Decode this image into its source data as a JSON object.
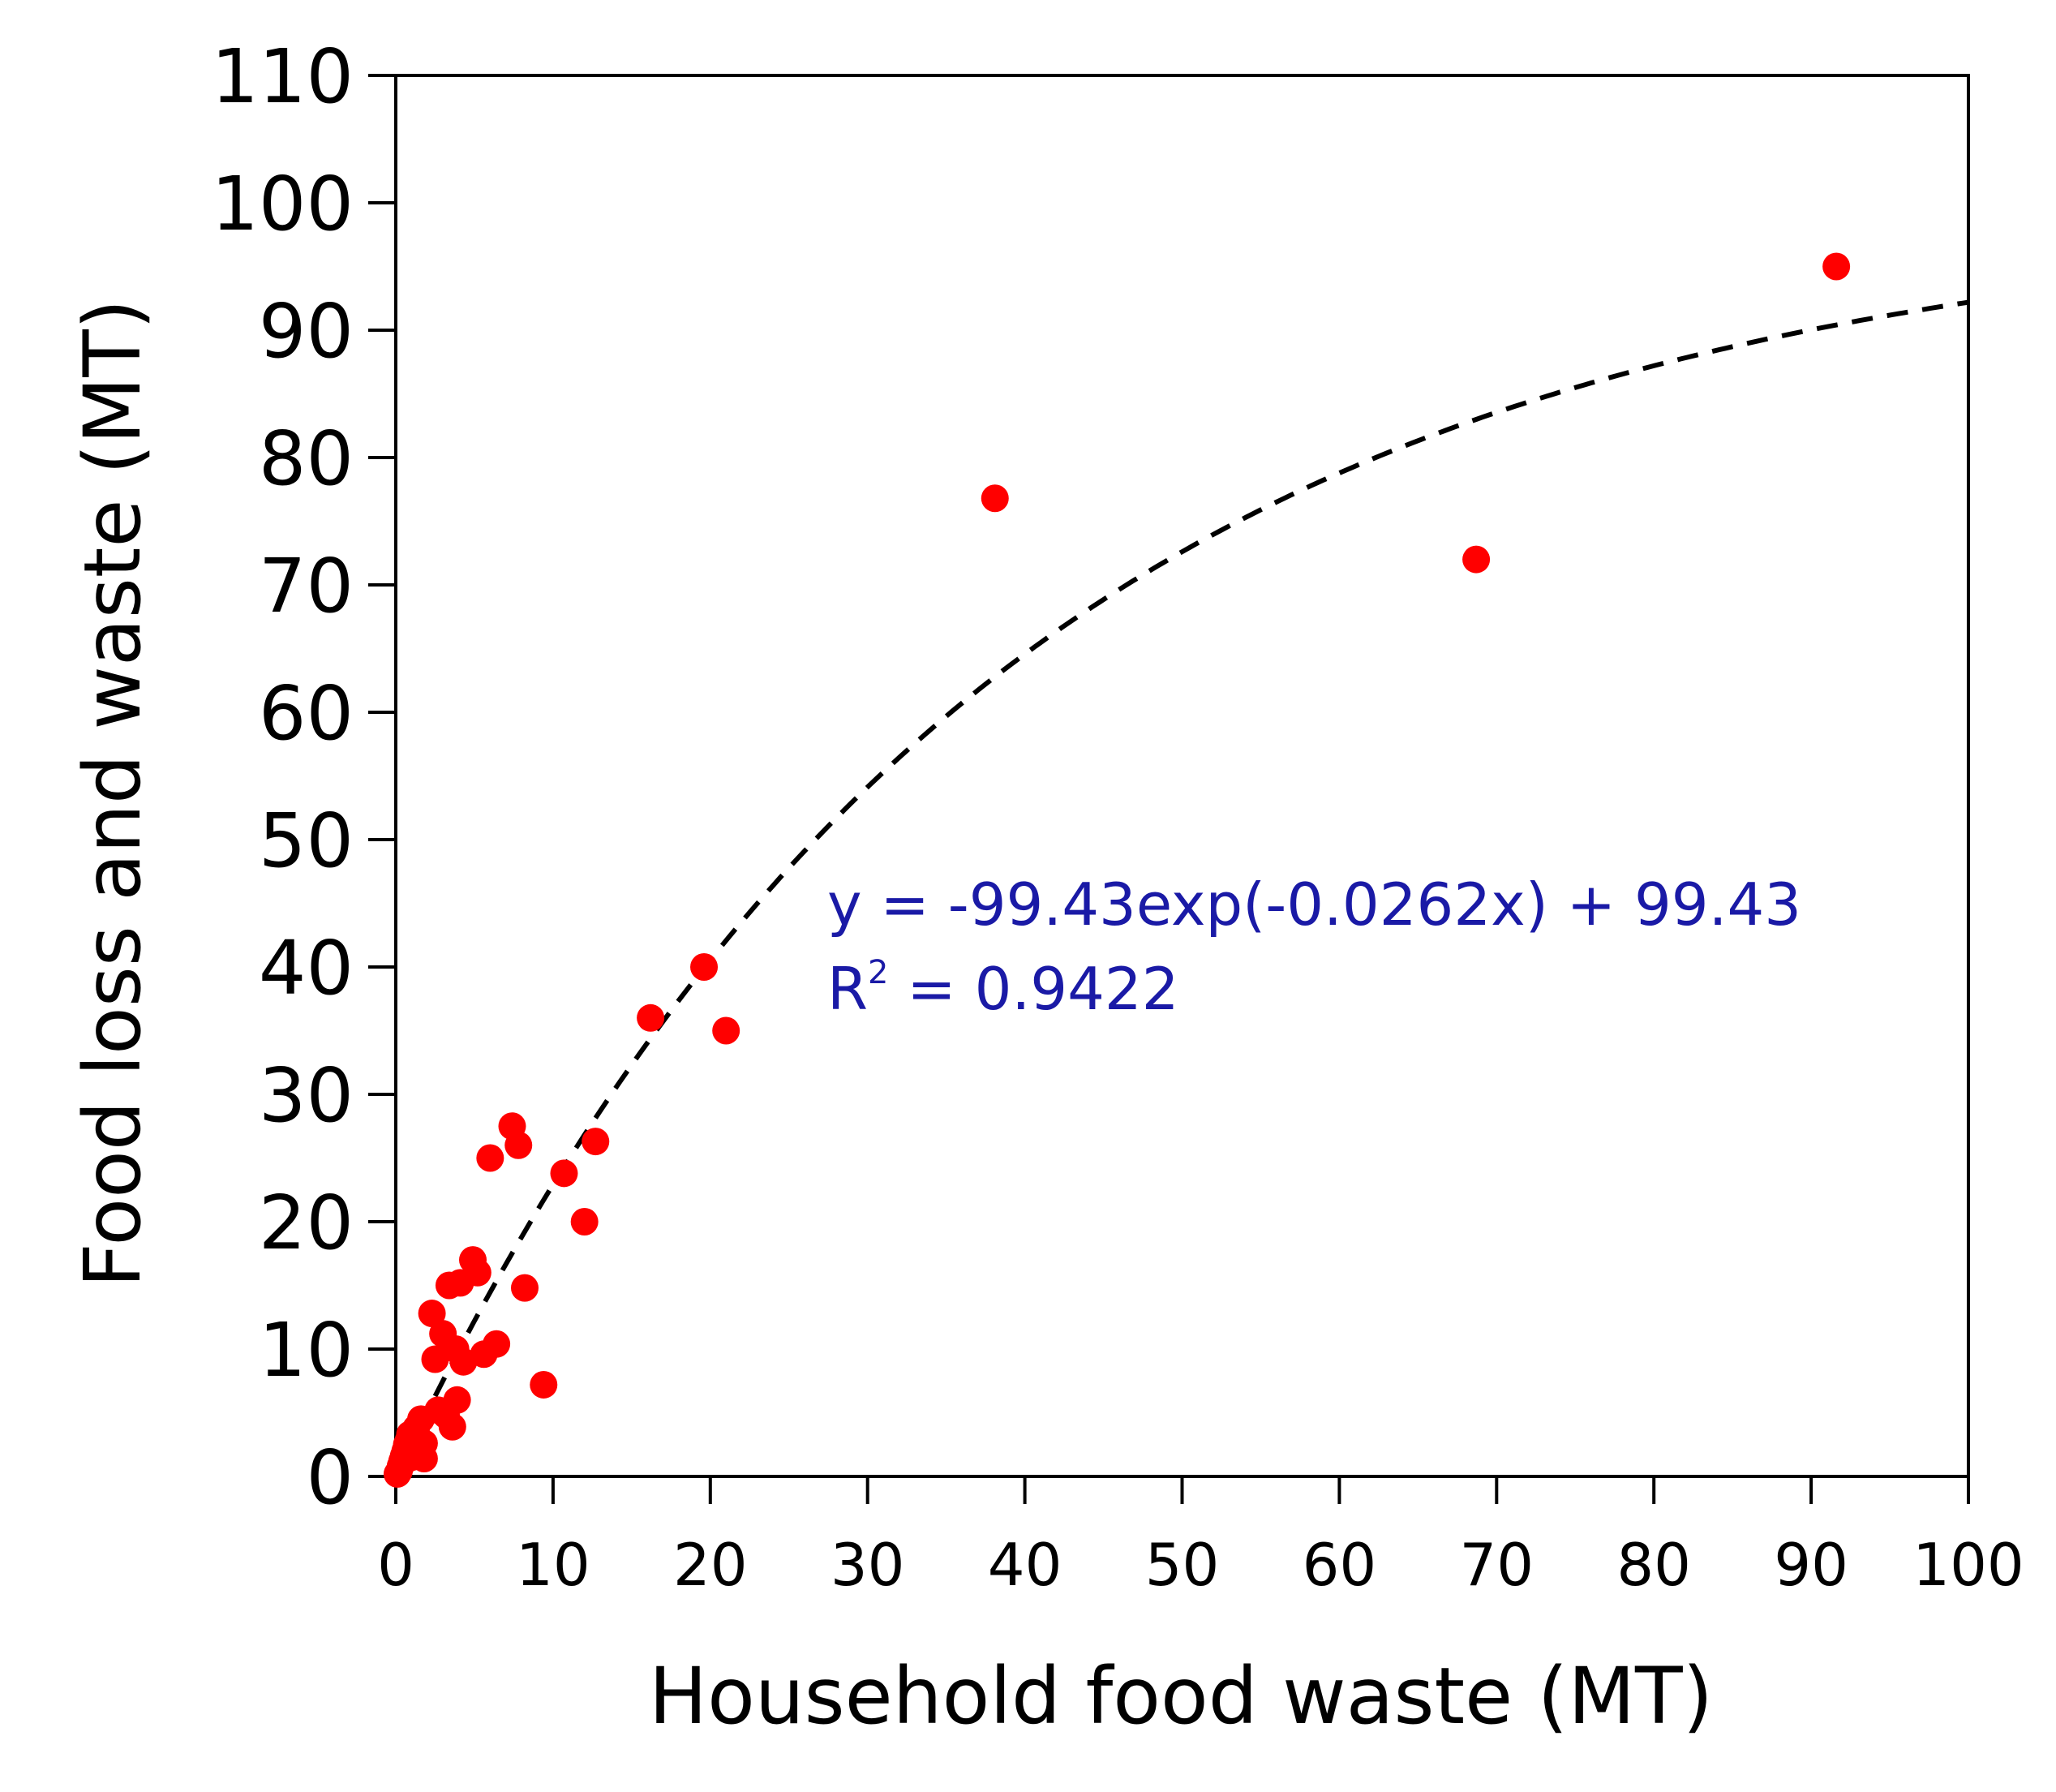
{
  "chart_data": {
    "type": "scatter",
    "title": "",
    "xlabel": "Household food waste (MT)",
    "ylabel": "Food loss and waste (MT)",
    "xlim": [
      0,
      100
    ],
    "ylim": [
      0,
      110
    ],
    "x_ticks": [
      0,
      10,
      20,
      30,
      40,
      50,
      60,
      70,
      80,
      90,
      100
    ],
    "y_ticks": [
      0,
      10,
      20,
      30,
      40,
      50,
      60,
      70,
      80,
      90,
      100,
      110
    ],
    "grid": false,
    "legend": "none",
    "marker_color": "#ff0000",
    "trend_color": "#000000",
    "annotation_color": "#1a1aa6",
    "series": [
      {
        "points": [
          [
            0.1,
            0.2
          ],
          [
            0.2,
            0.4
          ],
          [
            0.3,
            0.8
          ],
          [
            0.4,
            1.2
          ],
          [
            0.5,
            1.6
          ],
          [
            0.6,
            2.0
          ],
          [
            0.7,
            2.5
          ],
          [
            0.8,
            2.8
          ],
          [
            0.9,
            3.3
          ],
          [
            1.0,
            1.5
          ],
          [
            1.2,
            2.2
          ],
          [
            1.3,
            3.8
          ],
          [
            1.5,
            2.0
          ],
          [
            1.6,
            4.5
          ],
          [
            1.8,
            2.6
          ],
          [
            1.8,
            1.4
          ],
          [
            2.3,
            12.8
          ],
          [
            2.5,
            9.2
          ],
          [
            2.7,
            5.2
          ],
          [
            3.0,
            11.2
          ],
          [
            3.2,
            4.8
          ],
          [
            3.4,
            15.0
          ],
          [
            3.6,
            3.9
          ],
          [
            3.8,
            10.0
          ],
          [
            3.9,
            6.0
          ],
          [
            4.1,
            15.2
          ],
          [
            4.3,
            9.0
          ],
          [
            4.9,
            17.0
          ],
          [
            5.2,
            16.0
          ],
          [
            5.6,
            9.6
          ],
          [
            6.0,
            25.0
          ],
          [
            6.4,
            10.4
          ],
          [
            7.4,
            27.5
          ],
          [
            7.8,
            26.0
          ],
          [
            8.2,
            14.8
          ],
          [
            9.4,
            7.2
          ],
          [
            10.7,
            23.8
          ],
          [
            12.0,
            20.0
          ],
          [
            12.7,
            26.3
          ],
          [
            16.2,
            36.0
          ],
          [
            19.6,
            40.0
          ],
          [
            21.0,
            35.0
          ],
          [
            38.1,
            76.8
          ],
          [
            68.7,
            72.0
          ],
          [
            91.6,
            95.0
          ]
        ]
      }
    ],
    "trendline": {
      "equation": "y = -99.43exp(-0.0262x) + 99.43",
      "r2_label": "R",
      "r2_sup": "2",
      "r2_value": " = 0.9422",
      "a": 99.43,
      "b": -0.0262,
      "style": "dashed"
    }
  }
}
